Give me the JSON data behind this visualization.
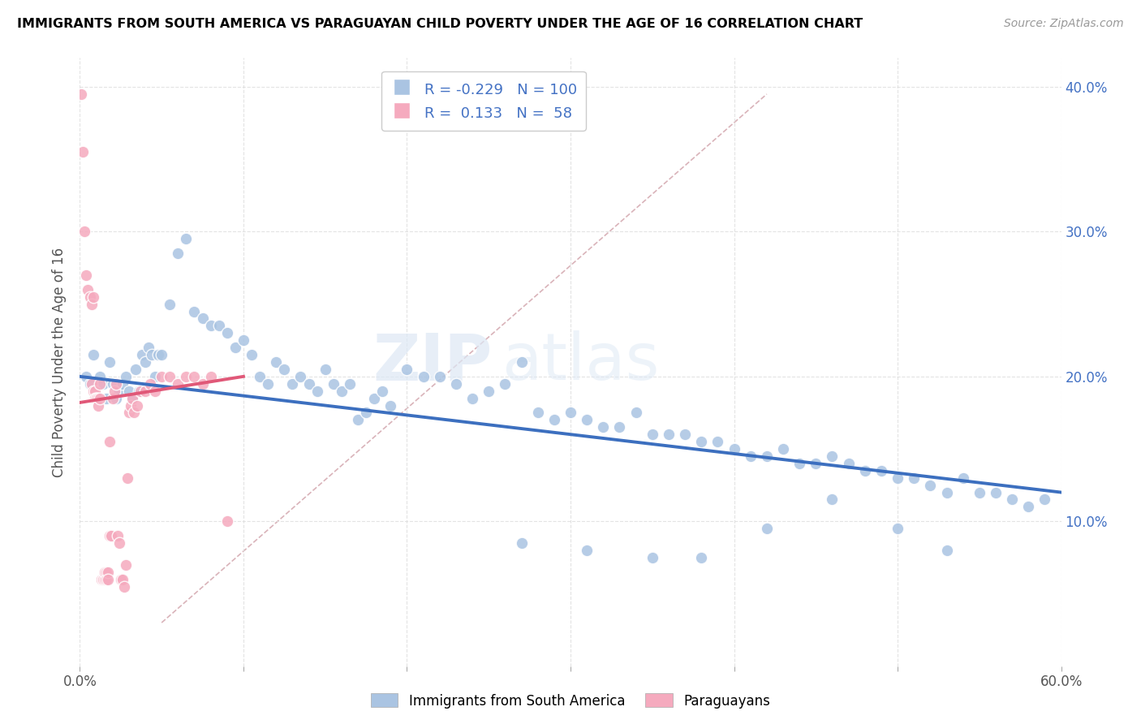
{
  "title": "IMMIGRANTS FROM SOUTH AMERICA VS PARAGUAYAN CHILD POVERTY UNDER THE AGE OF 16 CORRELATION CHART",
  "source": "Source: ZipAtlas.com",
  "ylabel": "Child Poverty Under the Age of 16",
  "xmin": 0.0,
  "xmax": 0.6,
  "ymin": 0.0,
  "ymax": 0.42,
  "y_ticks_right": [
    0.1,
    0.2,
    0.3,
    0.4
  ],
  "y_tick_labels_right": [
    "10.0%",
    "20.0%",
    "30.0%",
    "40.0%"
  ],
  "blue_color": "#aac4e2",
  "pink_color": "#f5aabe",
  "blue_line_color": "#3c6fbf",
  "pink_line_color": "#e05878",
  "dashed_line_color": "#d0a0a8",
  "grid_color": "#e0e0e0",
  "legend_R1": "-0.229",
  "legend_N1": "100",
  "legend_R2": "0.133",
  "legend_N2": "58",
  "watermark_zip": "ZIP",
  "watermark_atlas": "atlas",
  "legend_label1": "Immigrants from South America",
  "legend_label2": "Paraguayans",
  "blue_scatter_x": [
    0.004,
    0.006,
    0.008,
    0.01,
    0.012,
    0.014,
    0.016,
    0.018,
    0.02,
    0.022,
    0.024,
    0.026,
    0.028,
    0.03,
    0.032,
    0.034,
    0.036,
    0.038,
    0.04,
    0.042,
    0.044,
    0.046,
    0.048,
    0.05,
    0.055,
    0.06,
    0.065,
    0.07,
    0.075,
    0.08,
    0.085,
    0.09,
    0.095,
    0.1,
    0.105,
    0.11,
    0.115,
    0.12,
    0.125,
    0.13,
    0.135,
    0.14,
    0.145,
    0.15,
    0.155,
    0.16,
    0.165,
    0.17,
    0.175,
    0.18,
    0.185,
    0.19,
    0.2,
    0.21,
    0.22,
    0.23,
    0.24,
    0.25,
    0.26,
    0.27,
    0.28,
    0.29,
    0.3,
    0.31,
    0.32,
    0.33,
    0.34,
    0.35,
    0.36,
    0.37,
    0.38,
    0.39,
    0.4,
    0.41,
    0.42,
    0.43,
    0.44,
    0.45,
    0.46,
    0.47,
    0.48,
    0.49,
    0.5,
    0.51,
    0.52,
    0.53,
    0.54,
    0.55,
    0.56,
    0.57,
    0.58,
    0.59,
    0.5,
    0.53,
    0.42,
    0.46,
    0.38,
    0.35,
    0.31,
    0.27
  ],
  "blue_scatter_y": [
    0.2,
    0.195,
    0.215,
    0.185,
    0.2,
    0.195,
    0.185,
    0.21,
    0.195,
    0.185,
    0.19,
    0.195,
    0.2,
    0.19,
    0.185,
    0.205,
    0.19,
    0.215,
    0.21,
    0.22,
    0.215,
    0.2,
    0.215,
    0.215,
    0.25,
    0.285,
    0.295,
    0.245,
    0.24,
    0.235,
    0.235,
    0.23,
    0.22,
    0.225,
    0.215,
    0.2,
    0.195,
    0.21,
    0.205,
    0.195,
    0.2,
    0.195,
    0.19,
    0.205,
    0.195,
    0.19,
    0.195,
    0.17,
    0.175,
    0.185,
    0.19,
    0.18,
    0.205,
    0.2,
    0.2,
    0.195,
    0.185,
    0.19,
    0.195,
    0.21,
    0.175,
    0.17,
    0.175,
    0.17,
    0.165,
    0.165,
    0.175,
    0.16,
    0.16,
    0.16,
    0.155,
    0.155,
    0.15,
    0.145,
    0.145,
    0.15,
    0.14,
    0.14,
    0.145,
    0.14,
    0.135,
    0.135,
    0.13,
    0.13,
    0.125,
    0.12,
    0.13,
    0.12,
    0.12,
    0.115,
    0.11,
    0.115,
    0.095,
    0.08,
    0.095,
    0.115,
    0.075,
    0.075,
    0.08,
    0.085
  ],
  "pink_scatter_x": [
    0.001,
    0.002,
    0.003,
    0.004,
    0.005,
    0.006,
    0.007,
    0.007,
    0.008,
    0.008,
    0.009,
    0.009,
    0.01,
    0.01,
    0.011,
    0.011,
    0.012,
    0.012,
    0.013,
    0.013,
    0.014,
    0.014,
    0.015,
    0.015,
    0.016,
    0.016,
    0.017,
    0.017,
    0.018,
    0.018,
    0.019,
    0.02,
    0.021,
    0.022,
    0.023,
    0.024,
    0.025,
    0.026,
    0.027,
    0.028,
    0.029,
    0.03,
    0.031,
    0.032,
    0.033,
    0.035,
    0.037,
    0.04,
    0.043,
    0.046,
    0.05,
    0.055,
    0.06,
    0.065,
    0.07,
    0.075,
    0.08,
    0.09
  ],
  "pink_scatter_y": [
    0.395,
    0.355,
    0.3,
    0.27,
    0.26,
    0.255,
    0.25,
    0.195,
    0.19,
    0.255,
    0.19,
    0.185,
    0.185,
    0.185,
    0.185,
    0.18,
    0.195,
    0.185,
    0.06,
    0.06,
    0.06,
    0.06,
    0.06,
    0.065,
    0.065,
    0.06,
    0.065,
    0.06,
    0.155,
    0.09,
    0.09,
    0.185,
    0.19,
    0.195,
    0.09,
    0.085,
    0.06,
    0.06,
    0.055,
    0.07,
    0.13,
    0.175,
    0.18,
    0.185,
    0.175,
    0.18,
    0.19,
    0.19,
    0.195,
    0.19,
    0.2,
    0.2,
    0.195,
    0.2,
    0.2,
    0.195,
    0.2,
    0.1
  ],
  "blue_trendline_x": [
    0.0,
    0.6
  ],
  "blue_trendline_y": [
    0.2,
    0.12
  ],
  "pink_trendline_x": [
    0.0,
    0.1
  ],
  "pink_trendline_y": [
    0.182,
    0.2
  ],
  "dashed_line_x": [
    0.05,
    0.42
  ],
  "dashed_line_y": [
    0.03,
    0.395
  ]
}
